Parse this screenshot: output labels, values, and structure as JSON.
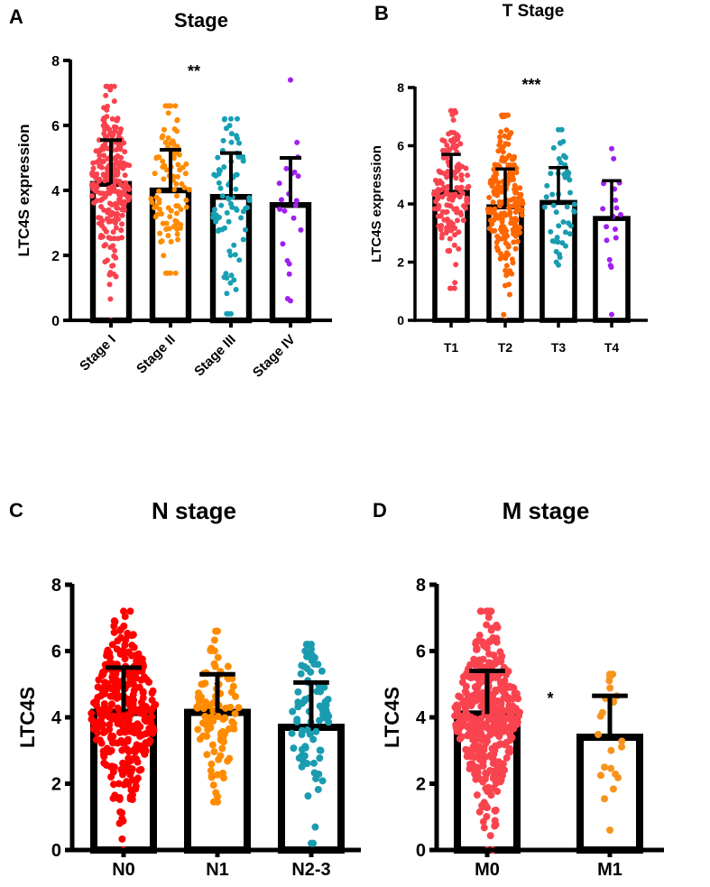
{
  "chart_data": [
    {
      "panel": "A",
      "type": "bar",
      "title": "Stage",
      "ylabel": "LTC4S expression",
      "xlabel": "",
      "ylim": [
        0,
        8
      ],
      "yticks": [
        0,
        2,
        4,
        6,
        8
      ],
      "significance": "**",
      "rotated_ticks": true,
      "categories": [
        "Stage I",
        "Stage II",
        "Stage III",
        "Stage IV"
      ],
      "values": [
        4.2,
        4.0,
        3.8,
        3.55
      ],
      "sd_upper": [
        5.55,
        5.25,
        5.15,
        5.0
      ],
      "point_ranges": [
        [
          0,
          7.2
        ],
        [
          1.45,
          6.6
        ],
        [
          0.2,
          6.2
        ],
        [
          0.6,
          7.4
        ]
      ],
      "point_counts": [
        250,
        100,
        80,
        22
      ],
      "colors": [
        "#f9424d",
        "#ff8c00",
        "#17a0b4",
        "#a020f0"
      ]
    },
    {
      "panel": "B",
      "type": "bar",
      "title": "T Stage",
      "ylabel": "LTC4S expression",
      "xlabel": "",
      "ylim": [
        0,
        8
      ],
      "yticks": [
        0,
        2,
        4,
        6,
        8
      ],
      "significance": "***",
      "rotated_ticks": false,
      "categories": [
        "T1",
        "T2",
        "T3",
        "T4"
      ],
      "values": [
        4.4,
        3.9,
        4.05,
        3.5
      ],
      "sd_upper": [
        5.7,
        5.2,
        5.25,
        4.8
      ],
      "point_ranges": [
        [
          1.1,
          7.2
        ],
        [
          0,
          7.05
        ],
        [
          1.9,
          6.55
        ],
        [
          0.2,
          5.9
        ]
      ],
      "point_counts": [
        150,
        220,
        50,
        18
      ],
      "colors": [
        "#f94450",
        "#ff6600",
        "#1a9cb0",
        "#a020f0"
      ]
    },
    {
      "panel": "C",
      "type": "bar",
      "title": "N stage",
      "ylabel": "LTC4S",
      "xlabel": "",
      "ylim": [
        0,
        8
      ],
      "yticks": [
        0,
        2,
        4,
        6,
        8
      ],
      "significance": "*",
      "rotated_ticks": false,
      "categories": [
        "N0",
        "N1",
        "N2-3"
      ],
      "values": [
        4.15,
        4.15,
        3.7
      ],
      "sd_upper": [
        5.5,
        5.3,
        5.05
      ],
      "point_ranges": [
        [
          0,
          7.2
        ],
        [
          1.45,
          6.6
        ],
        [
          0.2,
          6.2
        ]
      ],
      "point_counts": [
        350,
        100,
        80
      ],
      "colors": [
        "#ff0000",
        "#ff8c00",
        "#1a9cb0"
      ]
    },
    {
      "panel": "D",
      "type": "bar",
      "title": "M stage",
      "ylabel": "LTC4S",
      "xlabel": "",
      "ylim": [
        0,
        8
      ],
      "yticks": [
        0,
        2,
        4,
        6,
        8
      ],
      "significance": "*",
      "rotated_ticks": false,
      "categories": [
        "M0",
        "M1"
      ],
      "values": [
        4.1,
        3.4
      ],
      "sd_upper": [
        5.4,
        4.65
      ],
      "point_ranges": [
        [
          0,
          7.2
        ],
        [
          0.6,
          5.3
        ]
      ],
      "point_counts": [
        420,
        22
      ],
      "colors": [
        "#f94450",
        "#f7941d"
      ]
    }
  ]
}
